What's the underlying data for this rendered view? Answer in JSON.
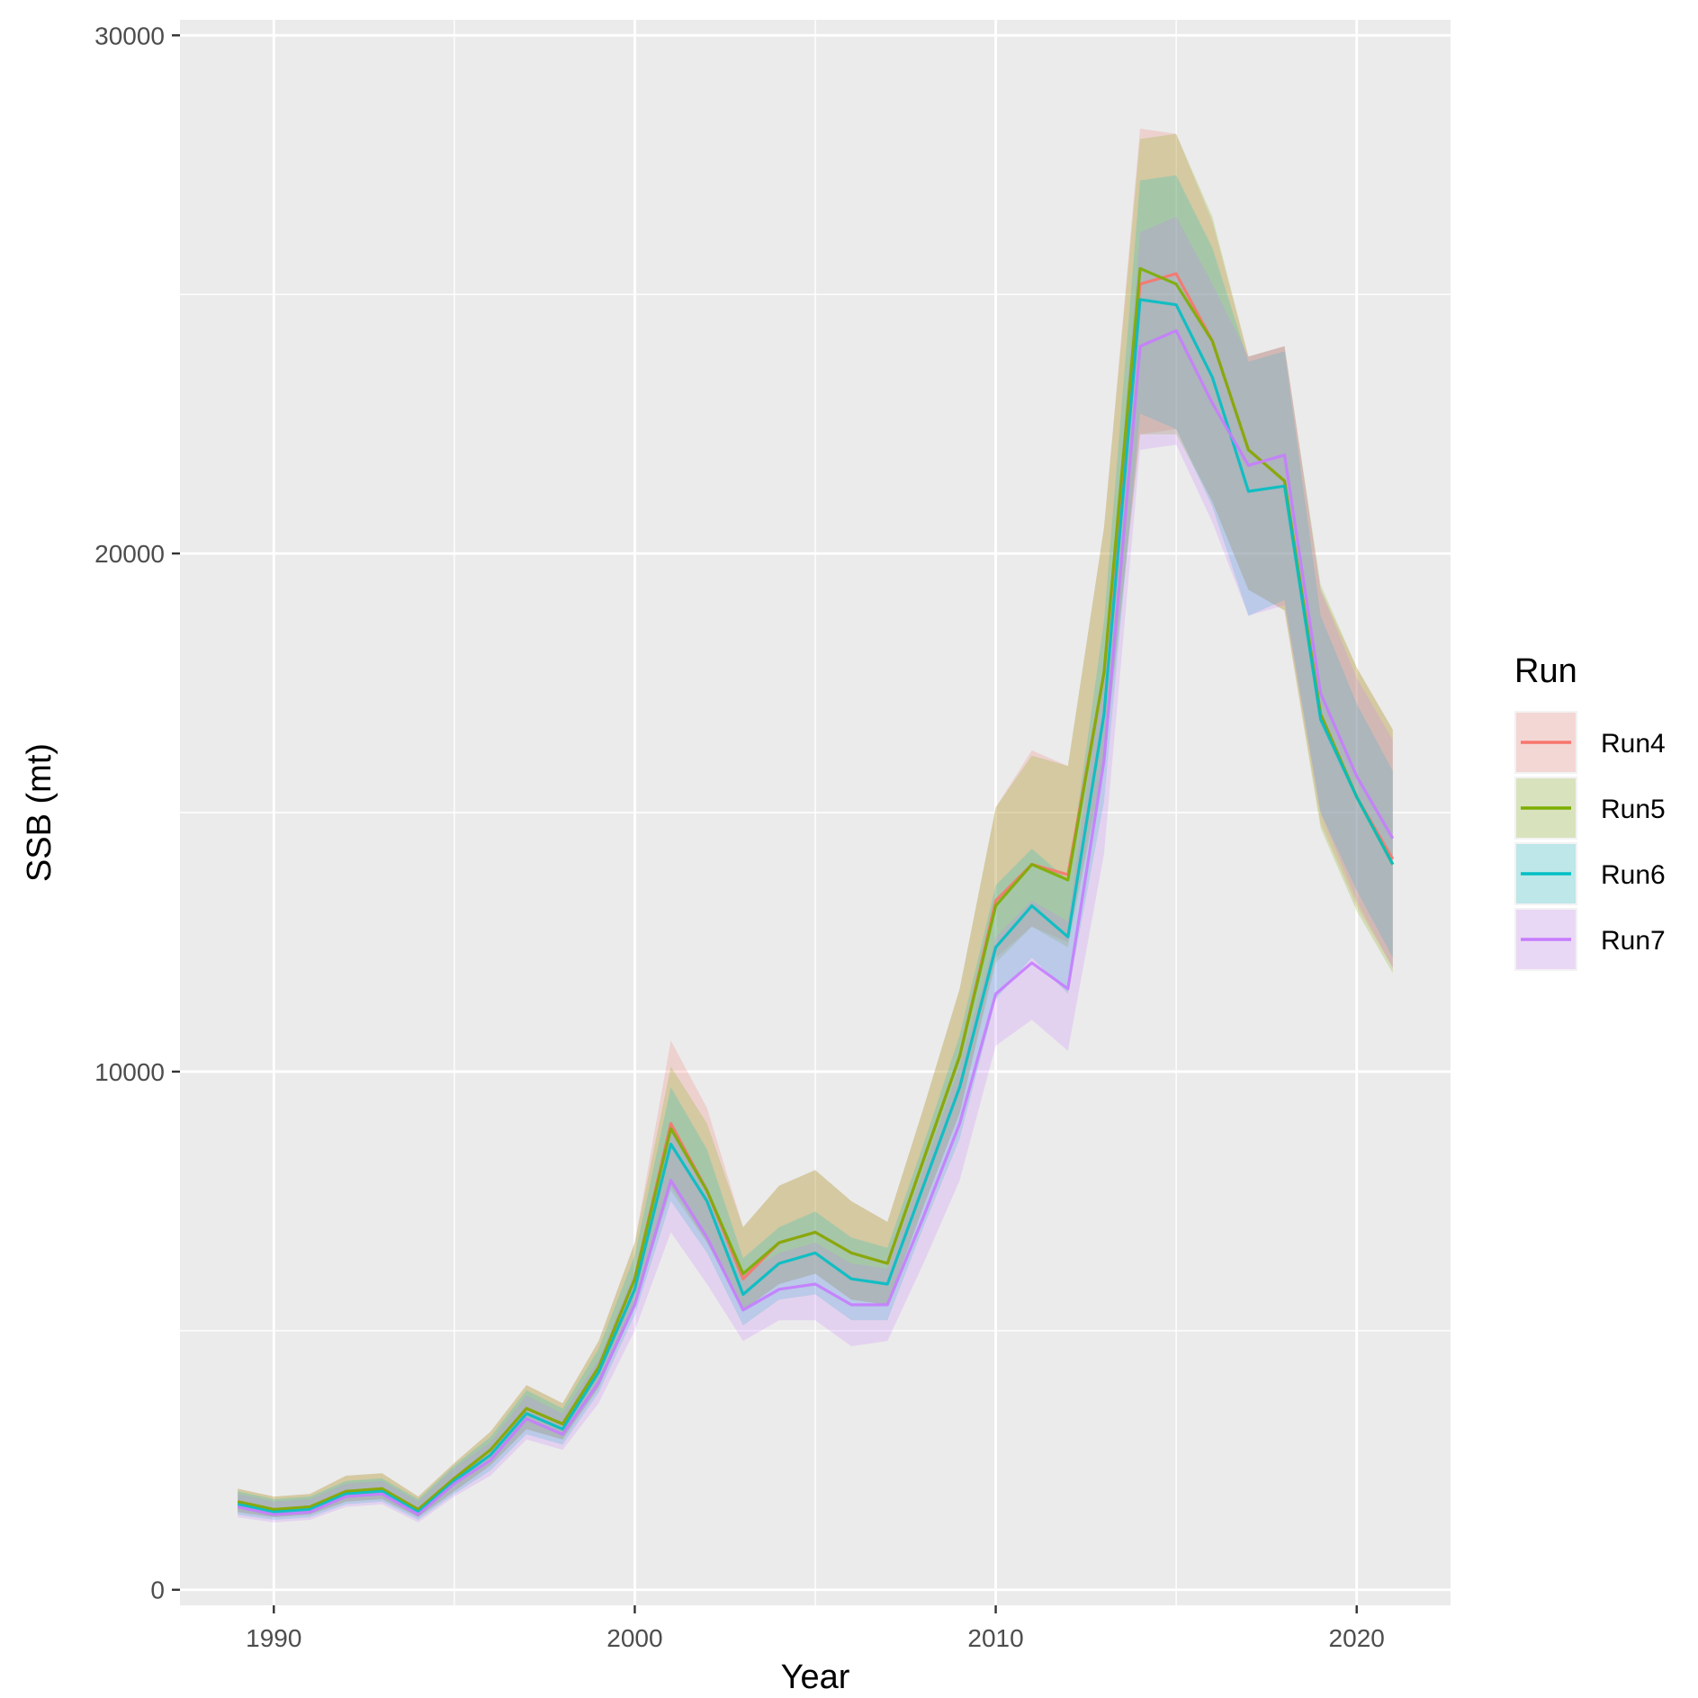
{
  "chart_data": {
    "type": "line",
    "xlabel": "Year",
    "ylabel": "SSB (mt)",
    "xlim": [
      1987.4,
      2022.6
    ],
    "ylim": [
      -300,
      30300
    ],
    "x_ticks": [
      1990,
      2000,
      2010,
      2020
    ],
    "x_tick_labels": [
      "1990",
      "2000",
      "2010",
      "2020"
    ],
    "y_ticks": [
      0,
      10000,
      20000,
      30000
    ],
    "y_tick_labels": [
      "0",
      "10000",
      "20000",
      "30000"
    ],
    "grid": true,
    "legend": {
      "title": "Run",
      "position": "right"
    },
    "x": [
      1989,
      1990,
      1991,
      1992,
      1993,
      1994,
      1995,
      1996,
      1997,
      1998,
      1999,
      2000,
      2001,
      2002,
      2003,
      2004,
      2005,
      2006,
      2007,
      2008,
      2009,
      2010,
      2011,
      2012,
      2013,
      2014,
      2015,
      2016,
      2017,
      2018,
      2019,
      2020,
      2021
    ],
    "series": [
      {
        "name": "Run4",
        "color": "#F8766D",
        "values": [
          1700,
          1550,
          1600,
          1900,
          1950,
          1550,
          2150,
          2700,
          3500,
          3200,
          4300,
          6000,
          9000,
          7700,
          6000,
          6700,
          6900,
          6500,
          6300,
          8300,
          10300,
          13300,
          14000,
          13800,
          17700,
          25200,
          25400,
          24100,
          22000,
          21400,
          16900,
          15300,
          14100
        ],
        "lower": [
          1500,
          1400,
          1450,
          1700,
          1750,
          1400,
          1900,
          2400,
          3100,
          2900,
          3900,
          5500,
          7800,
          6700,
          5400,
          5900,
          6100,
          5600,
          5500,
          7400,
          9200,
          12200,
          12800,
          12500,
          16000,
          22300,
          22400,
          21000,
          19300,
          18900,
          14800,
          13200,
          12000
        ],
        "upper": [
          1950,
          1800,
          1850,
          2200,
          2250,
          1800,
          2450,
          3050,
          3950,
          3600,
          4800,
          6700,
          10600,
          9300,
          7000,
          7800,
          8100,
          7500,
          7100,
          9300,
          11600,
          15100,
          16200,
          15900,
          20500,
          28200,
          28100,
          26400,
          23800,
          24000,
          19300,
          17800,
          16600
        ]
      },
      {
        "name": "Run5",
        "color": "#7CAE00",
        "values": [
          1700,
          1550,
          1600,
          1900,
          1950,
          1550,
          2150,
          2700,
          3500,
          3200,
          4300,
          6000,
          8900,
          7700,
          6100,
          6700,
          6900,
          6500,
          6300,
          8300,
          10300,
          13200,
          14000,
          13700,
          17700,
          25500,
          25200,
          24100,
          22000,
          21400,
          16900,
          15300,
          14000
        ],
        "lower": [
          1500,
          1400,
          1450,
          1700,
          1750,
          1400,
          1900,
          2400,
          3100,
          2900,
          3900,
          5500,
          7700,
          6700,
          5400,
          5900,
          6100,
          5600,
          5500,
          7400,
          9200,
          12100,
          12800,
          12400,
          15900,
          22300,
          22300,
          21000,
          19300,
          18900,
          14700,
          13100,
          11900
        ],
        "upper": [
          1950,
          1800,
          1850,
          2200,
          2250,
          1800,
          2450,
          3050,
          3950,
          3600,
          4800,
          6700,
          10100,
          9000,
          7000,
          7800,
          8100,
          7500,
          7100,
          9300,
          11600,
          15100,
          16100,
          15900,
          20500,
          28000,
          28100,
          26500,
          23800,
          24000,
          19400,
          17800,
          16600
        ]
      },
      {
        "name": "Run6",
        "color": "#00BFC4",
        "values": [
          1650,
          1500,
          1550,
          1850,
          1900,
          1500,
          2100,
          2600,
          3400,
          3100,
          4200,
          5800,
          8600,
          7500,
          5700,
          6300,
          6500,
          6000,
          5900,
          7800,
          9700,
          12400,
          13200,
          12600,
          16900,
          24900,
          24800,
          23400,
          21200,
          21300,
          16800,
          15300,
          14000
        ],
        "lower": [
          1450,
          1350,
          1400,
          1650,
          1700,
          1350,
          1850,
          2300,
          3000,
          2800,
          3800,
          5300,
          7500,
          6500,
          5100,
          5600,
          5700,
          5200,
          5200,
          7000,
          8700,
          11400,
          12200,
          11500,
          15200,
          22700,
          22400,
          20900,
          18800,
          19100,
          15000,
          13500,
          12200
        ],
        "upper": [
          1900,
          1750,
          1800,
          2100,
          2150,
          1750,
          2400,
          2950,
          3850,
          3500,
          4650,
          6450,
          9700,
          8500,
          6400,
          7000,
          7300,
          6800,
          6600,
          8600,
          10700,
          13600,
          14300,
          13700,
          18700,
          27200,
          27300,
          25900,
          23700,
          23900,
          18800,
          17100,
          15800
        ]
      },
      {
        "name": "Run7",
        "color": "#C77CFF",
        "values": [
          1600,
          1450,
          1500,
          1800,
          1850,
          1450,
          2050,
          2500,
          3300,
          3000,
          4000,
          5500,
          7900,
          6800,
          5400,
          5800,
          5900,
          5500,
          5500,
          7200,
          9000,
          11500,
          12100,
          11600,
          16000,
          24000,
          24300,
          22900,
          21700,
          21900,
          17300,
          15700,
          14500
        ],
        "lower": [
          1400,
          1300,
          1350,
          1600,
          1650,
          1300,
          1800,
          2200,
          2900,
          2700,
          3600,
          5000,
          6900,
          5900,
          4800,
          5200,
          5200,
          4700,
          4800,
          6300,
          7900,
          10500,
          11000,
          10400,
          14200,
          22000,
          22100,
          20600,
          18800,
          19000,
          15000,
          13300,
          12000
        ],
        "upper": [
          1850,
          1700,
          1750,
          2050,
          2100,
          1700,
          2350,
          2850,
          3750,
          3400,
          4450,
          6150,
          9000,
          7800,
          6100,
          6500,
          6700,
          6300,
          6200,
          8100,
          10100,
          12600,
          13300,
          12900,
          17800,
          26200,
          26500,
          25200,
          23800,
          24000,
          19300,
          17600,
          16400
        ]
      }
    ]
  }
}
